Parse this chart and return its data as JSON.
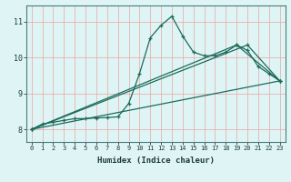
{
  "xlabel": "Humidex (Indice chaleur)",
  "background_color": "#dff5f5",
  "grid_color": "#e8b0b0",
  "line_color": "#1a6b5a",
  "xlim": [
    -0.5,
    23.5
  ],
  "ylim": [
    7.65,
    11.45
  ],
  "yticks": [
    8,
    9,
    10,
    11
  ],
  "xticks": [
    0,
    1,
    2,
    3,
    4,
    5,
    6,
    7,
    8,
    9,
    10,
    11,
    12,
    13,
    14,
    15,
    16,
    17,
    18,
    19,
    20,
    21,
    22,
    23
  ],
  "series1_x": [
    0,
    1,
    2,
    3,
    4,
    5,
    6,
    7,
    8,
    9,
    10,
    11,
    12,
    13,
    14,
    15,
    16,
    17,
    18,
    19,
    20,
    21,
    22,
    23
  ],
  "series1_y": [
    8.0,
    8.15,
    8.2,
    8.25,
    8.3,
    8.3,
    8.32,
    8.33,
    8.35,
    8.72,
    9.55,
    10.55,
    10.9,
    11.15,
    10.6,
    10.15,
    10.05,
    10.05,
    10.15,
    10.35,
    10.2,
    9.75,
    9.55,
    9.35
  ],
  "series2_x": [
    0,
    23
  ],
  "series2_y": [
    8.0,
    9.35
  ],
  "series3_x": [
    0,
    20,
    23
  ],
  "series3_y": [
    8.0,
    10.35,
    9.35
  ],
  "series4_x": [
    0,
    19,
    23
  ],
  "series4_y": [
    8.0,
    10.35,
    9.35
  ]
}
